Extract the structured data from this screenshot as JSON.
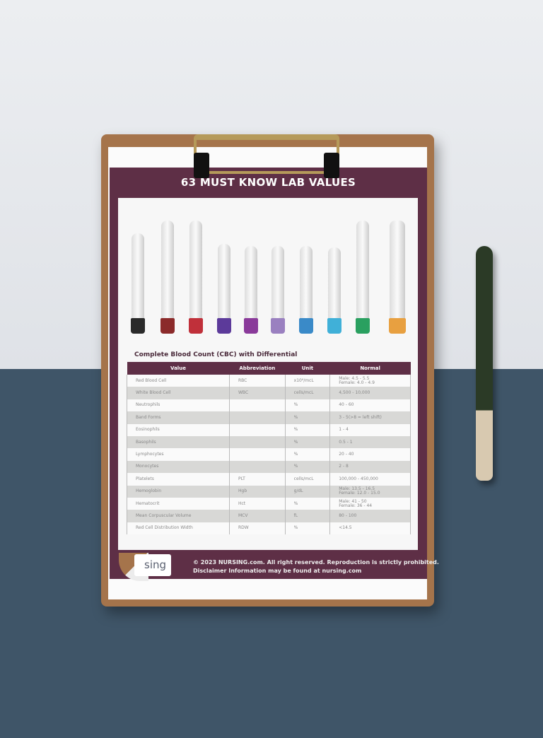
{
  "title": "63 MUST KNOW LAB VALUES",
  "section_title": "Complete Blood Count (CBC) with Differential",
  "tube_cap_colors": [
    "#2a2a2a",
    "#8b2a2a",
    "#c0303a",
    "#5c3a9a",
    "#8a3a9a",
    "#9a80c0",
    "#3a8ac8",
    "#40b0d8",
    "#2aa060",
    "#e8a040"
  ],
  "table": {
    "headers": [
      "Value",
      "Abbreviation",
      "Unit",
      "Normal"
    ],
    "rows": [
      [
        "Red Blood Cell",
        "RBC",
        "x10⁶/mcL",
        "Male: 4.5 - 5.5\nFemale: 4.0 - 4.9"
      ],
      [
        "White Blood Cell",
        "WBC",
        "cells/mcL",
        "4,500 - 10,000"
      ],
      [
        "Neutrophils",
        "",
        "%",
        "40 - 60"
      ],
      [
        "Band Forms",
        "",
        "%",
        "3 - 5(>8 = left shift)"
      ],
      [
        "Eosinophils",
        "",
        "%",
        "1 - 4"
      ],
      [
        "Basophils",
        "",
        "%",
        "0.5 - 1"
      ],
      [
        "Lymphocytes",
        "",
        "%",
        "20 - 40"
      ],
      [
        "Monocytes",
        "",
        "%",
        "2 - 8"
      ],
      [
        "Platelets",
        "PLT",
        "cells/mcL",
        "100,000 - 450,000"
      ],
      [
        "Hemoglobin",
        "Hgb",
        "g/dL",
        "Male: 13.5 - 16.5\nFemale: 12.0 - 15.0"
      ],
      [
        "Hematocrit",
        "Hct",
        "%",
        "Male: 41 - 50\nFemale: 36 - 44"
      ],
      [
        "Mean Corpuscular Volume",
        "MCV",
        "fL",
        "80 - 100"
      ],
      [
        "Red Cell Distribution Width",
        "RDW",
        "%",
        "<14.5"
      ]
    ]
  },
  "footer": {
    "logo": "sing",
    "line1": "© 2023 NURSING.com.  All right reserved. Reproduction is strictly prohibited.",
    "line2": "Disclaimer Information may be found at nursing.com"
  }
}
